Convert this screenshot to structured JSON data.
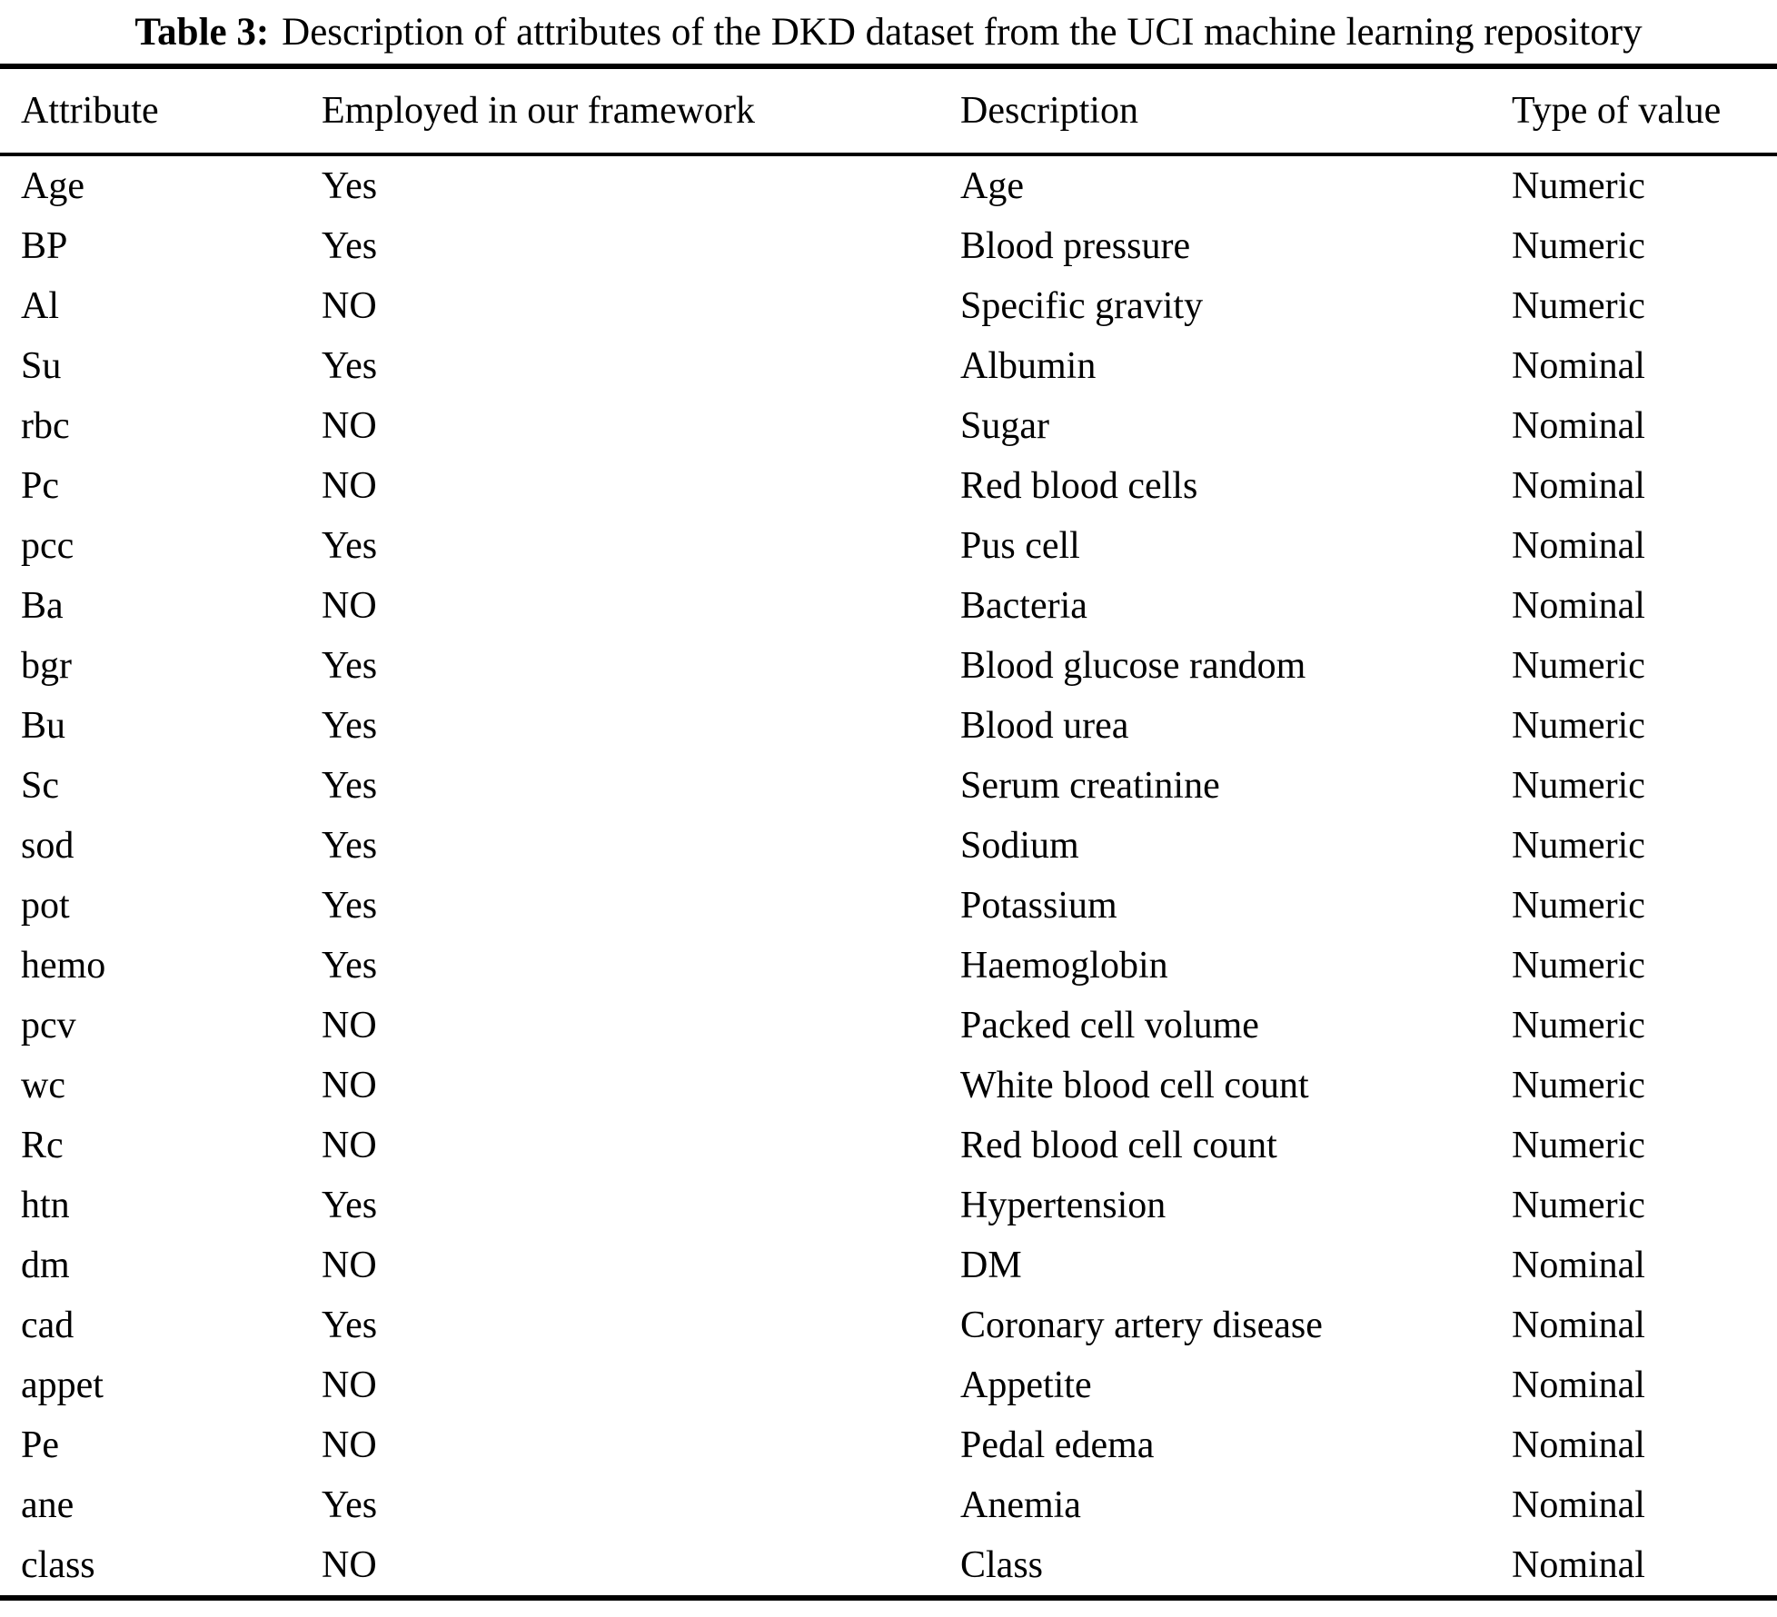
{
  "table": {
    "caption_label": "Table 3:",
    "caption_text": "Description of attributes of the DKD dataset from the UCI machine learning repository",
    "columns": {
      "attribute": "Attribute",
      "employed": "Employed in our framework",
      "description": "Description",
      "type": "Type of value"
    },
    "rows": [
      {
        "attribute": "Age",
        "employed": "Yes",
        "description": "Age",
        "type": "Numeric"
      },
      {
        "attribute": "BP",
        "employed": "Yes",
        "description": "Blood pressure",
        "type": "Numeric"
      },
      {
        "attribute": "Al",
        "employed": "NO",
        "description": "Specific gravity",
        "type": "Numeric"
      },
      {
        "attribute": "Su",
        "employed": "Yes",
        "description": "Albumin",
        "type": "Nominal"
      },
      {
        "attribute": "rbc",
        "employed": "NO",
        "description": "Sugar",
        "type": "Nominal"
      },
      {
        "attribute": "Pc",
        "employed": "NO",
        "description": "Red blood cells",
        "type": "Nominal"
      },
      {
        "attribute": "pcc",
        "employed": "Yes",
        "description": "Pus cell",
        "type": "Nominal"
      },
      {
        "attribute": "Ba",
        "employed": "NO",
        "description": "Bacteria",
        "type": "Nominal"
      },
      {
        "attribute": "bgr",
        "employed": "Yes",
        "description": "Blood glucose random",
        "type": "Numeric"
      },
      {
        "attribute": "Bu",
        "employed": "Yes",
        "description": "Blood urea",
        "type": "Numeric"
      },
      {
        "attribute": "Sc",
        "employed": "Yes",
        "description": "Serum creatinine",
        "type": "Numeric"
      },
      {
        "attribute": "sod",
        "employed": "Yes",
        "description": "Sodium",
        "type": "Numeric"
      },
      {
        "attribute": "pot",
        "employed": "Yes",
        "description": "Potassium",
        "type": "Numeric"
      },
      {
        "attribute": "hemo",
        "employed": "Yes",
        "description": "Haemoglobin",
        "type": "Numeric"
      },
      {
        "attribute": "pcv",
        "employed": "NO",
        "description": "Packed cell volume",
        "type": "Numeric"
      },
      {
        "attribute": "wc",
        "employed": "NO",
        "description": "White blood cell count",
        "type": "Numeric"
      },
      {
        "attribute": "Rc",
        "employed": "NO",
        "description": "Red blood cell count",
        "type": "Numeric"
      },
      {
        "attribute": "htn",
        "employed": "Yes",
        "description": "Hypertension",
        "type": "Numeric"
      },
      {
        "attribute": "dm",
        "employed": "NO",
        "description": "DM",
        "type": "Nominal"
      },
      {
        "attribute": "cad",
        "employed": "Yes",
        "description": "Coronary artery disease",
        "type": "Nominal"
      },
      {
        "attribute": "appet",
        "employed": "NO",
        "description": "Appetite",
        "type": "Nominal"
      },
      {
        "attribute": "Pe",
        "employed": "NO",
        "description": "Pedal edema",
        "type": "Nominal"
      },
      {
        "attribute": "ane",
        "employed": "Yes",
        "description": "Anemia",
        "type": "Nominal"
      },
      {
        "attribute": "class",
        "employed": "NO",
        "description": "Class",
        "type": "Nominal"
      }
    ]
  },
  "colors": {
    "text": "#000000",
    "background": "#ffffff",
    "rule": "#000000"
  }
}
